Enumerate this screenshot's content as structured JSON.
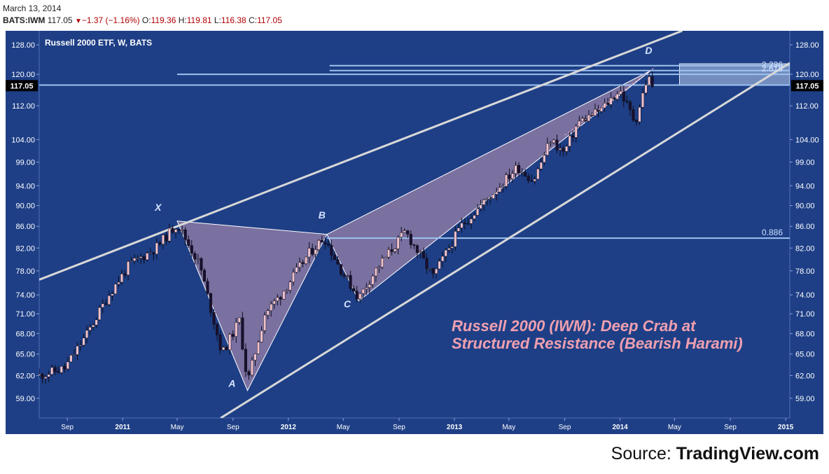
{
  "header": {
    "date": "March 13, 2014",
    "symbol": "BATS:IWM",
    "last": "117.05",
    "change": "−1.37 (−1.16%)",
    "o_label": "O:",
    "o": "119.36",
    "h_label": "H:",
    "h": "119.81",
    "l_label": "L:",
    "l": "116.38",
    "c_label": "C:",
    "c": "117.05"
  },
  "source": {
    "prefix": "Source: ",
    "name": "TradingView.com"
  },
  "colors": {
    "background": "#1e3f86",
    "candle_up": "#f2c4cf",
    "candle_down": "#1a1030",
    "pattern_fill": "#c79ab8",
    "channel": "#d8d8d8",
    "level_line": "#9ec3ef",
    "annotation": "#f0a0b0"
  },
  "chart_data": {
    "type": "candlestick",
    "title": "Russell 2000 ETF, W, BATS",
    "annotation": "Russell 2000 (IWM): Deep Crab at Structured Resistance (Bearish Harami)",
    "y_scale": "log",
    "ylim": [
      56.5,
      132
    ],
    "y_ticks": [
      "59.00",
      "62.00",
      "65.00",
      "68.00",
      "71.00",
      "74.00",
      "78.00",
      "82.00",
      "86.00",
      "90.00",
      "94.00",
      "99.00",
      "104.00",
      "112.00",
      "120.00",
      "128.00"
    ],
    "last_price_label": "117.05",
    "x_range": [
      "2010-07-01",
      "2015-01-10"
    ],
    "x_ticks": [
      {
        "label": "Sep",
        "date": "2010-09-01",
        "bold": false
      },
      {
        "label": "2011",
        "date": "2011-01-01",
        "bold": true
      },
      {
        "label": "May",
        "date": "2011-05-01",
        "bold": false
      },
      {
        "label": "Sep",
        "date": "2011-09-01",
        "bold": false
      },
      {
        "label": "2012",
        "date": "2012-01-01",
        "bold": true
      },
      {
        "label": "May",
        "date": "2012-05-01",
        "bold": false
      },
      {
        "label": "Sep",
        "date": "2012-09-01",
        "bold": false
      },
      {
        "label": "2013",
        "date": "2013-01-01",
        "bold": true
      },
      {
        "label": "May",
        "date": "2013-05-01",
        "bold": false
      },
      {
        "label": "Sep",
        "date": "2013-09-01",
        "bold": false
      },
      {
        "label": "2014",
        "date": "2014-01-01",
        "bold": true
      },
      {
        "label": "May",
        "date": "2014-05-01",
        "bold": false
      },
      {
        "label": "Sep",
        "date": "2014-09-01",
        "bold": false
      },
      {
        "label": "2015",
        "date": "2015-01-01",
        "bold": true
      }
    ],
    "anchors": [
      {
        "date": "2010-07-01",
        "price": 62.0
      },
      {
        "date": "2010-08-26",
        "price": 63.0
      },
      {
        "date": "2010-10-15",
        "price": 68.0
      },
      {
        "date": "2010-12-01",
        "price": 74.0
      },
      {
        "date": "2011-01-15",
        "price": 79.0
      },
      {
        "date": "2011-03-15",
        "price": 82.0
      },
      {
        "date": "2011-05-01",
        "price": 86.5
      },
      {
        "date": "2011-06-20",
        "price": 79.0
      },
      {
        "date": "2011-08-08",
        "price": 65.0
      },
      {
        "date": "2011-09-15",
        "price": 70.0
      },
      {
        "date": "2011-10-03",
        "price": 61.0
      },
      {
        "date": "2011-11-10",
        "price": 71.0
      },
      {
        "date": "2011-12-15",
        "price": 74.0
      },
      {
        "date": "2012-02-15",
        "price": 81.0
      },
      {
        "date": "2012-03-20",
        "price": 84.0
      },
      {
        "date": "2012-04-20",
        "price": 79.0
      },
      {
        "date": "2012-06-04",
        "price": 73.5
      },
      {
        "date": "2012-07-10",
        "price": 78.0
      },
      {
        "date": "2012-09-15",
        "price": 85.0
      },
      {
        "date": "2012-11-15",
        "price": 77.0
      },
      {
        "date": "2013-01-15",
        "price": 86.0
      },
      {
        "date": "2013-04-01",
        "price": 93.0
      },
      {
        "date": "2013-05-20",
        "price": 98.0
      },
      {
        "date": "2013-06-24",
        "price": 95.0
      },
      {
        "date": "2013-08-01",
        "price": 104.0
      },
      {
        "date": "2013-08-30",
        "price": 101.0
      },
      {
        "date": "2013-10-01",
        "price": 108.0
      },
      {
        "date": "2013-11-20",
        "price": 111.0
      },
      {
        "date": "2013-12-31",
        "price": 116.0
      },
      {
        "date": "2014-02-03",
        "price": 108.0
      },
      {
        "date": "2014-03-03",
        "price": 119.5
      },
      {
        "date": "2014-03-13",
        "price": 117.05
      }
    ],
    "pattern_points": [
      {
        "label": "X",
        "date": "2011-05-01",
        "price": 87.0
      },
      {
        "label": "A",
        "date": "2011-10-03",
        "price": 60.0
      },
      {
        "label": "B",
        "date": "2012-03-26",
        "price": 84.5
      },
      {
        "label": "C",
        "date": "2012-06-04",
        "price": 73.0
      },
      {
        "label": "D",
        "date": "2014-03-10",
        "price": 121.0
      }
    ],
    "pattern_label_positions": [
      {
        "label": "X",
        "date": "2011-03-20",
        "price": 89.0
      },
      {
        "label": "A",
        "date": "2011-08-30",
        "price": 60.5
      },
      {
        "label": "B",
        "date": "2012-03-15",
        "price": 87.5
      },
      {
        "label": "C",
        "date": "2012-05-10",
        "price": 72.0
      },
      {
        "label": "D",
        "date": "2014-03-05",
        "price": 125.5
      }
    ],
    "channel_upper": [
      {
        "date": "2010-07-01",
        "price": 76.5
      },
      {
        "date": "2014-05-18",
        "price": 132.0
      }
    ],
    "channel_lower": [
      {
        "date": "2011-08-05",
        "price": 56.5
      },
      {
        "date": "2015-01-10",
        "price": 123.0
      }
    ],
    "levels": [
      {
        "price": 83.8,
        "start": "2012-03-26",
        "label": "0.886"
      },
      {
        "price": 117.2,
        "start": "2010-07-01",
        "label": ""
      },
      {
        "price": 120.0,
        "start": "2011-05-01",
        "label": "2.618"
      },
      {
        "price": 121.0,
        "start": "2012-04-01",
        "label": "2.236"
      },
      {
        "price": 122.3,
        "start": "2012-04-01",
        "label": ""
      }
    ],
    "zone": {
      "start": "2014-05-12",
      "end": "2015-01-10",
      "low": 117.2,
      "high": 122.8
    },
    "trend_dashed": [
      {
        "date": "2013-09-01",
        "price": 105.0
      },
      {
        "date": "2014-03-20",
        "price": 122.0
      }
    ]
  }
}
